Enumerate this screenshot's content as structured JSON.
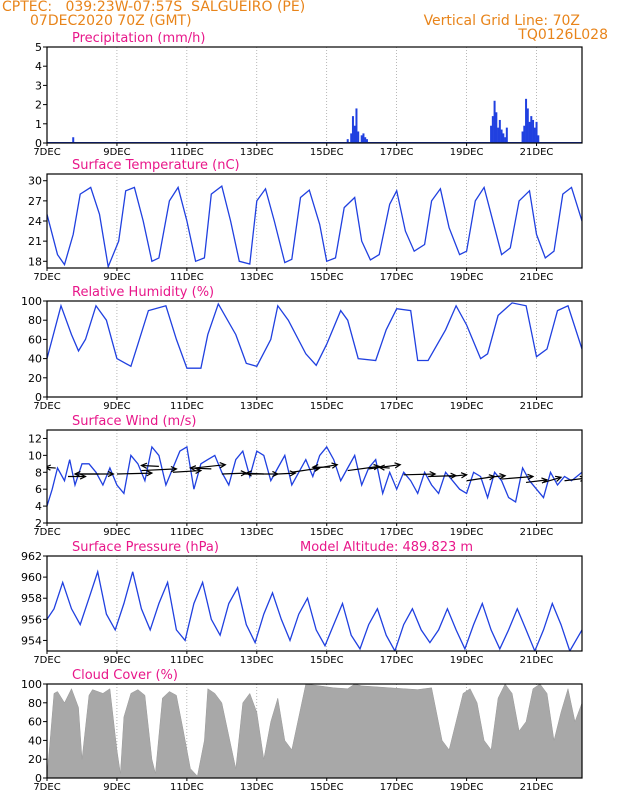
{
  "header": {
    "line1": "CPTEC:   039:23W-07:57S  SALGUEIRO (PE)",
    "line2": "07DEC2020 70Z (GMT)",
    "grid_note": "Vertical Grid Line: 70Z",
    "code": "TQ0126L028"
  },
  "colors": {
    "title": "#e8178a",
    "header": "#e8841a",
    "line": "#2040e0",
    "bar": "#2040e0",
    "cloud": "#a8a8a8"
  },
  "x_labels": [
    "7DEC",
    "9DEC",
    "11DEC",
    "13DEC",
    "15DEC",
    "17DEC",
    "19DEC",
    "21DEC"
  ],
  "chart_data": [
    {
      "type": "bar",
      "title": "Precipitation (mm/h)",
      "ylim": [
        0,
        5
      ],
      "yticks": [
        0,
        1,
        2,
        3,
        4,
        5
      ],
      "xlim": [
        0,
        15.3
      ],
      "events": [
        {
          "x": 0.75,
          "v": 0.3
        },
        {
          "x": 8.6,
          "v": 0.2
        },
        {
          "x": 8.7,
          "v": 0.5
        },
        {
          "x": 8.75,
          "v": 1.4
        },
        {
          "x": 8.8,
          "v": 0.9
        },
        {
          "x": 8.85,
          "v": 1.8
        },
        {
          "x": 8.9,
          "v": 0.6
        },
        {
          "x": 9.0,
          "v": 0.4
        },
        {
          "x": 9.05,
          "v": 0.5
        },
        {
          "x": 9.1,
          "v": 0.3
        },
        {
          "x": 9.15,
          "v": 0.2
        },
        {
          "x": 12.7,
          "v": 0.9
        },
        {
          "x": 12.75,
          "v": 1.4
        },
        {
          "x": 12.8,
          "v": 2.2
        },
        {
          "x": 12.85,
          "v": 1.6
        },
        {
          "x": 12.9,
          "v": 0.8
        },
        {
          "x": 12.95,
          "v": 1.2
        },
        {
          "x": 13.0,
          "v": 0.7
        },
        {
          "x": 13.05,
          "v": 0.5
        },
        {
          "x": 13.1,
          "v": 0.3
        },
        {
          "x": 13.15,
          "v": 0.8
        },
        {
          "x": 13.6,
          "v": 0.6
        },
        {
          "x": 13.65,
          "v": 0.9
        },
        {
          "x": 13.7,
          "v": 2.3
        },
        {
          "x": 13.75,
          "v": 1.8
        },
        {
          "x": 13.8,
          "v": 1.1
        },
        {
          "x": 13.85,
          "v": 1.4
        },
        {
          "x": 13.9,
          "v": 1.2
        },
        {
          "x": 13.95,
          "v": 0.8
        },
        {
          "x": 14.0,
          "v": 1.1
        },
        {
          "x": 14.05,
          "v": 0.4
        }
      ]
    },
    {
      "type": "line",
      "title": "Surface Temperature (nC)",
      "ylim": [
        17,
        31
      ],
      "yticks": [
        18,
        21,
        24,
        27,
        30
      ],
      "xlim": [
        0,
        15.3
      ],
      "x": [
        0,
        0.3,
        0.5,
        0.75,
        0.95,
        1.25,
        1.5,
        1.75,
        2.05,
        2.25,
        2.5,
        2.75,
        3.0,
        3.2,
        3.5,
        3.75,
        4.0,
        4.25,
        4.5,
        4.7,
        5.0,
        5.25,
        5.5,
        5.8,
        6.0,
        6.25,
        6.5,
        6.8,
        7.0,
        7.25,
        7.5,
        7.8,
        8.0,
        8.25,
        8.5,
        8.8,
        9.0,
        9.25,
        9.5,
        9.8,
        10.0,
        10.25,
        10.5,
        10.8,
        11.0,
        11.25,
        11.5,
        11.8,
        12.0,
        12.25,
        12.5,
        12.8,
        13.0,
        13.25,
        13.5,
        13.8,
        14.0,
        14.25,
        14.5,
        14.75,
        15.0,
        15.3
      ],
      "values": [
        25,
        19,
        17.5,
        22,
        28,
        29,
        25,
        17.2,
        21,
        28.5,
        29,
        24,
        18,
        18.5,
        27,
        29,
        24,
        18,
        18.5,
        28,
        29.2,
        24,
        18,
        17.6,
        27,
        28.8,
        24,
        17.8,
        18.3,
        27.5,
        28.6,
        23.5,
        18,
        18.5,
        26,
        27.5,
        21,
        18.2,
        19,
        26.5,
        28.5,
        22.5,
        19.5,
        20.5,
        27,
        28.8,
        23,
        19,
        19.5,
        27,
        29,
        23,
        19,
        20,
        27,
        28.5,
        22,
        18.5,
        19.5,
        28,
        29,
        24
      ]
    },
    {
      "type": "line",
      "title": "Relative Humidity (%)",
      "ylim": [
        0,
        100
      ],
      "yticks": [
        0,
        20,
        40,
        60,
        80,
        100
      ],
      "xlim": [
        0,
        15.3
      ],
      "x": [
        0,
        0.4,
        0.7,
        0.9,
        1.1,
        1.4,
        1.7,
        2.0,
        2.4,
        2.6,
        2.9,
        3.4,
        3.7,
        4.0,
        4.4,
        4.6,
        4.9,
        5.4,
        5.7,
        6.0,
        6.4,
        6.6,
        6.9,
        7.4,
        7.7,
        8.0,
        8.4,
        8.6,
        8.9,
        9.4,
        9.7,
        10.0,
        10.4,
        10.6,
        10.9,
        11.4,
        11.7,
        12.0,
        12.4,
        12.6,
        12.9,
        13.3,
        13.7,
        14.0,
        14.3,
        14.6,
        14.9,
        15.3
      ],
      "values": [
        40,
        95,
        65,
        48,
        60,
        95,
        80,
        40,
        32,
        55,
        90,
        95,
        60,
        30,
        30,
        65,
        97,
        65,
        35,
        32,
        60,
        95,
        80,
        45,
        33,
        55,
        90,
        80,
        40,
        38,
        70,
        92,
        90,
        38,
        38,
        70,
        95,
        75,
        40,
        45,
        85,
        98,
        95,
        42,
        50,
        90,
        95,
        50
      ]
    },
    {
      "type": "line",
      "title": "Surface Wind (m/s)",
      "ylim": [
        2,
        13
      ],
      "yticks": [
        2,
        4,
        6,
        8,
        10,
        12
      ],
      "xlim": [
        0,
        15.3
      ],
      "x": [
        0,
        0.15,
        0.3,
        0.5,
        0.65,
        0.8,
        1.0,
        1.2,
        1.4,
        1.6,
        1.8,
        2.0,
        2.2,
        2.4,
        2.6,
        2.8,
        3.0,
        3.2,
        3.4,
        3.6,
        3.8,
        4.0,
        4.2,
        4.4,
        4.6,
        4.8,
        5.0,
        5.2,
        5.4,
        5.6,
        5.8,
        6.0,
        6.2,
        6.4,
        6.6,
        6.8,
        7.0,
        7.2,
        7.4,
        7.6,
        7.8,
        8.0,
        8.2,
        8.4,
        8.6,
        8.8,
        9.0,
        9.2,
        9.4,
        9.6,
        9.8,
        10.0,
        10.2,
        10.4,
        10.6,
        10.8,
        11.0,
        11.2,
        11.4,
        11.6,
        11.8,
        12.0,
        12.2,
        12.4,
        12.6,
        12.8,
        13.0,
        13.2,
        13.4,
        13.6,
        13.8,
        14.0,
        14.2,
        14.4,
        14.6,
        14.8,
        15.0,
        15.3
      ],
      "values": [
        4,
        6,
        8.5,
        7,
        9.5,
        6.5,
        9,
        9,
        8,
        6.5,
        8.5,
        6.5,
        5.5,
        10,
        9,
        7,
        11,
        10,
        6.5,
        8.5,
        10.5,
        11,
        6,
        9,
        9.5,
        10,
        8,
        6.5,
        9.5,
        10.5,
        7.5,
        10.5,
        10,
        7,
        8.5,
        10,
        6.5,
        8,
        9.5,
        7.5,
        10,
        11,
        9.5,
        7,
        8.5,
        10,
        6.5,
        8.5,
        9.5,
        5.5,
        8,
        6,
        8,
        7,
        5.5,
        8,
        6.5,
        5.5,
        8,
        7,
        6,
        5.5,
        8,
        7.5,
        5,
        8,
        7,
        5,
        4.5,
        8.5,
        7,
        6,
        5,
        8,
        6.5,
        7.5,
        7,
        8
      ],
      "vectors": [
        {
          "x": 0.25,
          "y": 8.5,
          "dx": -0.3,
          "dy": 0.1
        },
        {
          "x": 0.6,
          "y": 7.5,
          "dx": 0.5,
          "dy": 0.0
        },
        {
          "x": 0.9,
          "y": 7.8,
          "dx": 1.0,
          "dy": 0.0
        },
        {
          "x": 1.5,
          "y": 7.8,
          "dx": -0.7,
          "dy": 0.0
        },
        {
          "x": 2.0,
          "y": 7.8,
          "dx": 1.0,
          "dy": 0.1
        },
        {
          "x": 2.7,
          "y": 8.2,
          "dx": 1.0,
          "dy": 0.2
        },
        {
          "x": 3.2,
          "y": 8.7,
          "dx": -0.5,
          "dy": 0.1
        },
        {
          "x": 3.6,
          "y": 8.0,
          "dx": 0.8,
          "dy": 0.2
        },
        {
          "x": 4.2,
          "y": 8.5,
          "dx": 0.9,
          "dy": 0.4
        },
        {
          "x": 4.7,
          "y": 8.4,
          "dx": -0.6,
          "dy": 0.1
        },
        {
          "x": 5.0,
          "y": 7.8,
          "dx": 0.7,
          "dy": 0.1
        },
        {
          "x": 5.6,
          "y": 7.8,
          "dx": 1.0,
          "dy": 0.0
        },
        {
          "x": 6.2,
          "y": 7.8,
          "dx": -0.5,
          "dy": 0.1
        },
        {
          "x": 6.6,
          "y": 7.8,
          "dx": 0.5,
          "dy": 0.1
        },
        {
          "x": 7.0,
          "y": 8.0,
          "dx": 0.8,
          "dy": 0.5
        },
        {
          "x": 7.6,
          "y": 8.4,
          "dx": 0.7,
          "dy": 0.5
        },
        {
          "x": 8.1,
          "y": 8.6,
          "dx": -0.5,
          "dy": 0.0
        },
        {
          "x": 8.6,
          "y": 8.2,
          "dx": 0.9,
          "dy": 0.5
        },
        {
          "x": 9.2,
          "y": 8.4,
          "dx": 0.9,
          "dy": 0.5
        },
        {
          "x": 9.8,
          "y": 8.5,
          "dx": -0.3,
          "dy": 0.1
        },
        {
          "x": 10.2,
          "y": 7.7,
          "dx": 0.9,
          "dy": 0.1
        },
        {
          "x": 10.9,
          "y": 7.5,
          "dx": 0.8,
          "dy": 0.1
        },
        {
          "x": 11.5,
          "y": 7.5,
          "dx": 0.5,
          "dy": 0.2
        },
        {
          "x": 12.0,
          "y": 7.0,
          "dx": 0.8,
          "dy": 0.5
        },
        {
          "x": 12.6,
          "y": 7.4,
          "dx": 0.5,
          "dy": 0.2
        },
        {
          "x": 13.0,
          "y": 7.2,
          "dx": 0.9,
          "dy": 0.3
        },
        {
          "x": 13.7,
          "y": 6.8,
          "dx": 0.6,
          "dy": 0.3
        },
        {
          "x": 14.2,
          "y": 6.8,
          "dx": 0.5,
          "dy": 0.6
        },
        {
          "x": 14.8,
          "y": 7.0,
          "dx": 0.6,
          "dy": 0.3
        }
      ]
    },
    {
      "type": "line",
      "title": "Surface Pressure (hPa)",
      "annotation": "Model Altitude: 489.823 m",
      "ylim": [
        953,
        962
      ],
      "yticks": [
        954,
        956,
        958,
        960,
        962
      ],
      "xlim": [
        0,
        15.3
      ],
      "x": [
        0,
        0.2,
        0.45,
        0.7,
        0.95,
        1.2,
        1.45,
        1.7,
        1.95,
        2.2,
        2.45,
        2.7,
        2.95,
        3.2,
        3.45,
        3.7,
        3.95,
        4.2,
        4.45,
        4.7,
        4.95,
        5.2,
        5.45,
        5.7,
        5.95,
        6.2,
        6.45,
        6.7,
        6.95,
        7.2,
        7.45,
        7.7,
        7.95,
        8.2,
        8.45,
        8.7,
        8.95,
        9.2,
        9.45,
        9.7,
        9.95,
        10.2,
        10.45,
        10.7,
        10.95,
        11.2,
        11.45,
        11.7,
        11.95,
        12.2,
        12.45,
        12.7,
        12.95,
        13.2,
        13.45,
        13.7,
        13.95,
        14.2,
        14.45,
        14.7,
        14.95,
        15.3
      ],
      "values": [
        956,
        957,
        959.5,
        957,
        955.5,
        958,
        960.5,
        956.5,
        955,
        957.5,
        960.5,
        957,
        955,
        957.5,
        959.5,
        955,
        954,
        957.5,
        959.5,
        956,
        954.5,
        957.5,
        959,
        955.5,
        953.8,
        956.5,
        958.5,
        956,
        954,
        956.5,
        958,
        955,
        953.5,
        955.5,
        957.5,
        954.5,
        953.2,
        955.5,
        957,
        954.5,
        953,
        955.5,
        957,
        955,
        953.8,
        955,
        957,
        955,
        953.2,
        955.5,
        957.5,
        955,
        953.2,
        955,
        957,
        955,
        953,
        955,
        957.5,
        955.5,
        953,
        955
      ]
    },
    {
      "type": "area",
      "title": "Cloud Cover (%)",
      "ylim": [
        0,
        100
      ],
      "yticks": [
        0,
        20,
        40,
        60,
        80,
        100
      ],
      "xlim": [
        0,
        15.3
      ],
      "x": [
        0,
        0.1,
        0.2,
        0.3,
        0.5,
        0.7,
        0.9,
        1.0,
        1.2,
        1.3,
        1.6,
        1.8,
        2.0,
        2.1,
        2.2,
        2.4,
        2.6,
        2.8,
        3.0,
        3.1,
        3.3,
        3.5,
        3.7,
        3.9,
        4.1,
        4.3,
        4.5,
        4.6,
        4.8,
        5.0,
        5.2,
        5.4,
        5.6,
        5.8,
        6.0,
        6.2,
        6.4,
        6.6,
        6.8,
        7.0,
        7.4,
        7.8,
        8.2,
        8.6,
        8.8,
        9.0,
        9.4,
        9.8,
        10.2,
        10.6,
        11.0,
        11.3,
        11.5,
        11.7,
        11.9,
        12.1,
        12.3,
        12.5,
        12.7,
        12.9,
        13.1,
        13.3,
        13.5,
        13.7,
        13.9,
        14.1,
        14.3,
        14.5,
        14.7,
        14.9,
        15.1,
        15.3
      ],
      "values": [
        2,
        45,
        90,
        92,
        80,
        95,
        75,
        20,
        88,
        94,
        90,
        95,
        30,
        5,
        65,
        90,
        94,
        88,
        20,
        5,
        85,
        92,
        88,
        50,
        10,
        2,
        40,
        95,
        90,
        80,
        45,
        10,
        80,
        90,
        70,
        20,
        60,
        85,
        40,
        30,
        100,
        98,
        96,
        95,
        100,
        98,
        97,
        96,
        95,
        94,
        96,
        40,
        30,
        60,
        90,
        95,
        80,
        40,
        30,
        85,
        100,
        90,
        50,
        60,
        95,
        100,
        90,
        40,
        70,
        95,
        60,
        80
      ]
    }
  ]
}
